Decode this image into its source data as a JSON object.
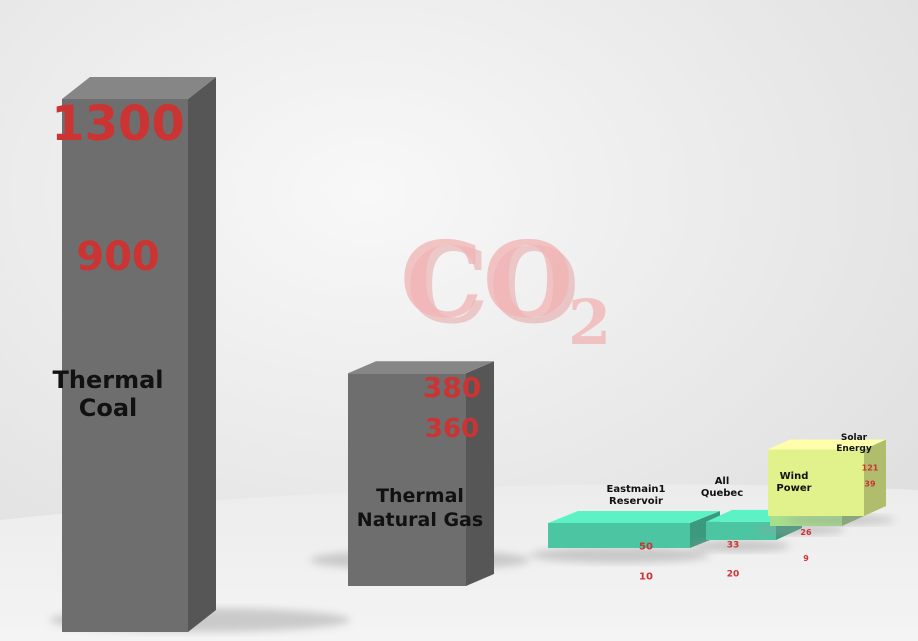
{
  "chart_data": {
    "type": "bar",
    "categories": [
      {
        "lines": [
          "Thermal",
          "Coal"
        ]
      },
      {
        "lines": [
          "Thermal",
          "Natural Gas"
        ]
      },
      {
        "lines": [
          "Eastmain1",
          "Reservoir"
        ]
      },
      {
        "lines": [
          "All",
          "Quebec"
        ]
      },
      {
        "lines": [
          "Wind",
          "Power"
        ]
      },
      {
        "lines": [
          "Solar",
          "Energy"
        ]
      }
    ],
    "series": [
      {
        "values": [
          1300,
          380,
          50,
          33,
          26,
          121
        ]
      },
      {
        "values": [
          900,
          360,
          10,
          20,
          9,
          39
        ]
      }
    ],
    "symbol": {
      "main": "CO",
      "sub": "2"
    },
    "colors": {
      "value_text": "#cc3333",
      "fossil_bar": "#6e6e6e",
      "reservoir_bar": "#4cc6a2",
      "wind_bar": "#a7df8c",
      "solar_bar": "#e1f28c"
    }
  }
}
